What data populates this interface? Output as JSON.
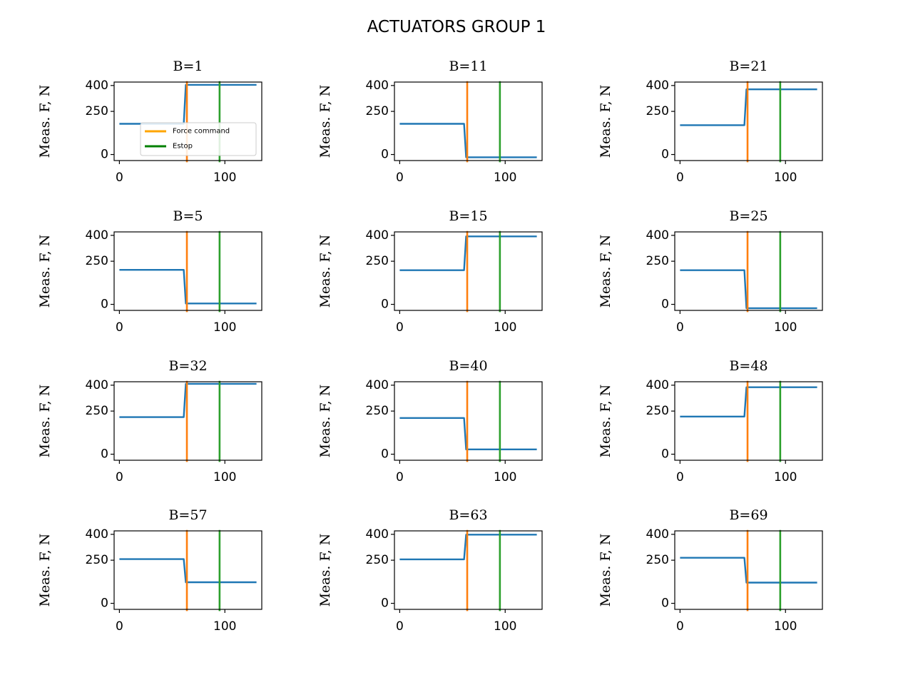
{
  "figure": {
    "title": "ACTUATORS GROUP 1"
  },
  "legend": {
    "placement": "lower-right of first panel",
    "entries": [
      {
        "label": "Force command",
        "color": "#ffa500"
      },
      {
        "label": "Estop",
        "color": "#008000"
      }
    ]
  },
  "colors": {
    "measured": "#1f77b4",
    "force_command_line": "#ff7f0e",
    "estop_line": "#2ca02c"
  },
  "chart_data": [
    {
      "type": "line",
      "title": "B=1",
      "ylabel": "Meas. F, N",
      "xlim": [
        -5,
        135
      ],
      "ylim": [
        -35,
        420
      ],
      "xticks": [
        0,
        100
      ],
      "yticks": [
        0,
        250,
        400
      ],
      "series": [
        {
          "x": [
            0,
            61,
            63,
            130
          ],
          "y": [
            178,
            178,
            404,
            404
          ]
        }
      ],
      "force_command_x": 64,
      "estop_x": 95
    },
    {
      "type": "line",
      "title": "B=11",
      "ylabel": "Meas. F, N",
      "xlim": [
        -5,
        135
      ],
      "ylim": [
        -35,
        420
      ],
      "xticks": [
        0,
        100
      ],
      "yticks": [
        0,
        250,
        400
      ],
      "series": [
        {
          "x": [
            0,
            61,
            63,
            130
          ],
          "y": [
            178,
            178,
            -16,
            -16
          ]
        }
      ],
      "force_command_x": 64,
      "estop_x": 95
    },
    {
      "type": "line",
      "title": "B=21",
      "ylabel": "Meas. F, N",
      "xlim": [
        -5,
        135
      ],
      "ylim": [
        -35,
        420
      ],
      "xticks": [
        0,
        100
      ],
      "yticks": [
        0,
        250,
        400
      ],
      "series": [
        {
          "x": [
            0,
            61,
            63,
            130
          ],
          "y": [
            170,
            170,
            378,
            378
          ]
        }
      ],
      "force_command_x": 64,
      "estop_x": 95
    },
    {
      "type": "line",
      "title": "B=5",
      "ylabel": "Meas. F, N",
      "xlim": [
        -5,
        135
      ],
      "ylim": [
        -35,
        420
      ],
      "xticks": [
        0,
        100
      ],
      "yticks": [
        0,
        250,
        400
      ],
      "series": [
        {
          "x": [
            0,
            61,
            63,
            130
          ],
          "y": [
            200,
            200,
            5,
            5
          ]
        }
      ],
      "force_command_x": 64,
      "estop_x": 95
    },
    {
      "type": "line",
      "title": "B=15",
      "ylabel": "Meas. F, N",
      "xlim": [
        -5,
        135
      ],
      "ylim": [
        -35,
        420
      ],
      "xticks": [
        0,
        100
      ],
      "yticks": [
        0,
        250,
        400
      ],
      "series": [
        {
          "x": [
            0,
            61,
            63,
            130
          ],
          "y": [
            198,
            198,
            394,
            394
          ]
        }
      ],
      "force_command_x": 64,
      "estop_x": 95
    },
    {
      "type": "line",
      "title": "B=25",
      "ylabel": "Meas. F, N",
      "xlim": [
        -5,
        135
      ],
      "ylim": [
        -35,
        420
      ],
      "xticks": [
        0,
        100
      ],
      "yticks": [
        0,
        250,
        400
      ],
      "series": [
        {
          "x": [
            0,
            61,
            63,
            130
          ],
          "y": [
            198,
            198,
            -22,
            -22
          ]
        }
      ],
      "force_command_x": 64,
      "estop_x": 95
    },
    {
      "type": "line",
      "title": "B=32",
      "ylabel": "Meas. F, N",
      "xlim": [
        -5,
        135
      ],
      "ylim": [
        -35,
        420
      ],
      "xticks": [
        0,
        100
      ],
      "yticks": [
        0,
        250,
        400
      ],
      "series": [
        {
          "x": [
            0,
            61,
            63,
            130
          ],
          "y": [
            215,
            215,
            408,
            408
          ]
        }
      ],
      "force_command_x": 64,
      "estop_x": 95
    },
    {
      "type": "line",
      "title": "B=40",
      "ylabel": "Meas. F, N",
      "xlim": [
        -5,
        135
      ],
      "ylim": [
        -35,
        420
      ],
      "xticks": [
        0,
        100
      ],
      "yticks": [
        0,
        250,
        400
      ],
      "series": [
        {
          "x": [
            0,
            61,
            63,
            130
          ],
          "y": [
            210,
            210,
            28,
            28
          ]
        }
      ],
      "force_command_x": 64,
      "estop_x": 95
    },
    {
      "type": "line",
      "title": "B=48",
      "ylabel": "Meas. F, N",
      "xlim": [
        -5,
        135
      ],
      "ylim": [
        -35,
        420
      ],
      "xticks": [
        0,
        100
      ],
      "yticks": [
        0,
        250,
        400
      ],
      "series": [
        {
          "x": [
            0,
            61,
            63,
            130
          ],
          "y": [
            218,
            218,
            388,
            388
          ]
        }
      ],
      "force_command_x": 64,
      "estop_x": 95
    },
    {
      "type": "line",
      "title": "B=57",
      "ylabel": "Meas. F, N",
      "xlim": [
        -5,
        135
      ],
      "ylim": [
        -35,
        420
      ],
      "xticks": [
        0,
        100
      ],
      "yticks": [
        0,
        250,
        400
      ],
      "series": [
        {
          "x": [
            0,
            61,
            63,
            130
          ],
          "y": [
            256,
            256,
            122,
            122
          ]
        }
      ],
      "force_command_x": 64,
      "estop_x": 95
    },
    {
      "type": "line",
      "title": "B=63",
      "ylabel": "Meas. F, N",
      "xlim": [
        -5,
        135
      ],
      "ylim": [
        -35,
        420
      ],
      "xticks": [
        0,
        100
      ],
      "yticks": [
        0,
        250,
        400
      ],
      "series": [
        {
          "x": [
            0,
            61,
            63,
            130
          ],
          "y": [
            255,
            255,
            398,
            398
          ]
        }
      ],
      "force_command_x": 64,
      "estop_x": 95
    },
    {
      "type": "line",
      "title": "B=69",
      "ylabel": "Meas. F, N",
      "xlim": [
        -5,
        135
      ],
      "ylim": [
        -35,
        420
      ],
      "xticks": [
        0,
        100
      ],
      "yticks": [
        0,
        250,
        400
      ],
      "series": [
        {
          "x": [
            0,
            61,
            63,
            130
          ],
          "y": [
            264,
            264,
            120,
            120
          ]
        }
      ],
      "force_command_x": 64,
      "estop_x": 95
    }
  ]
}
